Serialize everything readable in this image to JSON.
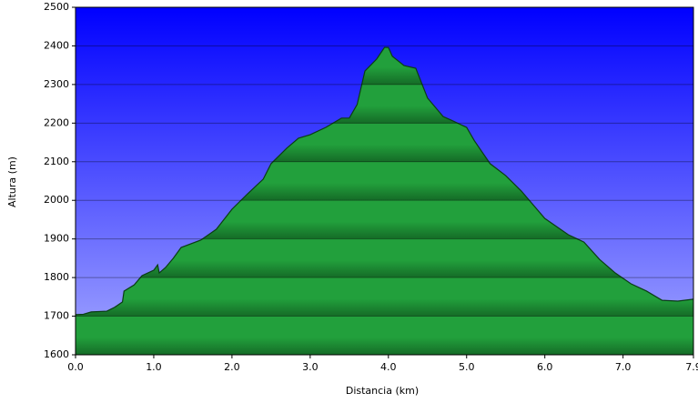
{
  "chart_data": {
    "type": "area",
    "x_label": "Distancia   (km)",
    "y_label": "Altura (m)",
    "x": [
      0.0,
      0.1,
      0.2,
      0.4,
      0.5,
      0.6,
      0.62,
      0.75,
      0.85,
      1.0,
      1.05,
      1.07,
      1.15,
      1.25,
      1.35,
      1.6,
      1.8,
      2.0,
      2.2,
      2.4,
      2.5,
      2.7,
      2.85,
      3.0,
      3.2,
      3.4,
      3.5,
      3.6,
      3.7,
      3.85,
      3.95,
      4.0,
      4.05,
      4.2,
      4.35,
      4.5,
      4.7,
      4.8,
      5.0,
      5.1,
      5.3,
      5.5,
      5.7,
      6.0,
      6.3,
      6.5,
      6.7,
      6.9,
      7.1,
      7.3,
      7.5,
      7.7,
      7.9
    ],
    "values": [
      1704,
      1705,
      1711,
      1713,
      1723,
      1737,
      1765,
      1781,
      1805,
      1819,
      1833,
      1812,
      1826,
      1850,
      1878,
      1897,
      1925,
      1977,
      2017,
      2055,
      2095,
      2135,
      2161,
      2170,
      2189,
      2213,
      2213,
      2248,
      2335,
      2366,
      2396,
      2396,
      2373,
      2349,
      2342,
      2265,
      2217,
      2208,
      2189,
      2154,
      2095,
      2064,
      2024,
      1953,
      1911,
      1892,
      1847,
      1812,
      1784,
      1765,
      1741,
      1739,
      1744
    ],
    "color": "#22a03c",
    "xlim": [
      0,
      7.9
    ],
    "ylim": [
      1600,
      2500
    ],
    "xticks": [
      {
        "value": 0,
        "label": "0.0"
      },
      {
        "value": 1,
        "label": "1.0"
      },
      {
        "value": 2,
        "label": "2.0"
      },
      {
        "value": 3,
        "label": "3.0"
      },
      {
        "value": 4,
        "label": "4.0"
      },
      {
        "value": 5,
        "label": "5.0"
      },
      {
        "value": 6,
        "label": "6.0"
      },
      {
        "value": 7,
        "label": "7.0"
      },
      7.9
    ],
    "yticks": [
      1600,
      1700,
      1800,
      1900,
      2000,
      2100,
      2200,
      2300,
      2400,
      2500
    ],
    "grid": true
  }
}
